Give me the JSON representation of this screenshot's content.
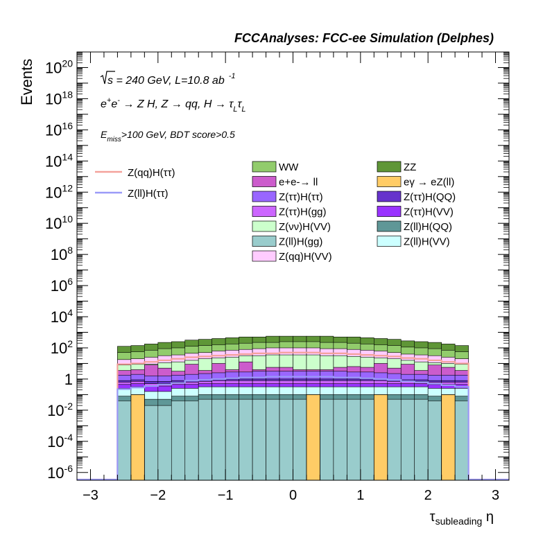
{
  "header": {
    "title": "FCCAnalyses: FCC-ee Simulation (Delphes)"
  },
  "annotations": {
    "sqrt_s": "s",
    "energy_lumi": " = 240 GeV, L=10.8 ab",
    "lumi_exp": "-1",
    "process_main": "e",
    "process_sup1": "+",
    "process_e2": "e",
    "process_sup2": "-",
    "process_rest": " → Z H, Z  → qq, H  → ",
    "tau1": "τ",
    "tau1_sub": "L",
    "tau2": "τ",
    "tau2_sub": "L",
    "cut_e": "E",
    "cut_sub": "miss",
    "cut_rest": ">100 GeV, BDT score>0.5"
  },
  "axes": {
    "ylabel": "Events",
    "xlabel_main": "τ",
    "xlabel_sub": "subleading",
    "xlabel_tail": " η",
    "xticks": [
      "−3",
      "−2",
      "−1",
      "0",
      "1",
      "2",
      "3"
    ],
    "xtick_values": [
      -3,
      -2,
      -1,
      0,
      1,
      2,
      3
    ],
    "yticks": [
      {
        "mant": "10",
        "exp": "-6",
        "value": -6
      },
      {
        "mant": "10",
        "exp": "-4",
        "value": -4
      },
      {
        "mant": "10",
        "exp": "-2",
        "value": -2
      },
      {
        "mant": "1",
        "exp": "",
        "value": 0
      },
      {
        "mant": "10",
        "exp": "2",
        "value": 2
      },
      {
        "mant": "10",
        "exp": "4",
        "value": 4
      },
      {
        "mant": "10",
        "exp": "6",
        "value": 6
      },
      {
        "mant": "10",
        "exp": "8",
        "value": 8
      },
      {
        "mant": "10",
        "exp": "10",
        "value": 10
      },
      {
        "mant": "10",
        "exp": "12",
        "value": 12
      },
      {
        "mant": "10",
        "exp": "14",
        "value": 14
      },
      {
        "mant": "10",
        "exp": "16",
        "value": 16
      },
      {
        "mant": "10",
        "exp": "18",
        "value": 18
      },
      {
        "mant": "10",
        "exp": "20",
        "value": 20
      }
    ]
  },
  "legend": {
    "signals": [
      {
        "label": "Z(qq)H(ττ)",
        "color": "#f4a19b"
      },
      {
        "label": "Z(ll)H(ττ)",
        "color": "#9a9af8"
      }
    ],
    "backgrounds": [
      {
        "label": "WW",
        "color": "#92cc6c"
      },
      {
        "label": "ZZ",
        "color": "#5f9637"
      },
      {
        "label": "e+e-→ ll",
        "color": "#cc5ccc"
      },
      {
        "label": "eγ → eZ(ll)",
        "color": "#ffcc66"
      },
      {
        "label": "Z(ττ)H(ττ)",
        "color": "#9966ff"
      },
      {
        "label": "Z(ττ)H(QQ)",
        "color": "#6633cc"
      },
      {
        "label": "Z(ττ)H(gg)",
        "color": "#cc66ff"
      },
      {
        "label": "Z(ττ)H(VV)",
        "color": "#9933ff"
      },
      {
        "label": "Z(νν)H(VV)",
        "color": "#ccffcc"
      },
      {
        "label": "Z(ll)H(QQ)",
        "color": "#5f9797"
      },
      {
        "label": "Z(ll)H(gg)",
        "color": "#99cccc"
      },
      {
        "label": "Z(ll)H(VV)",
        "color": "#ccffff"
      },
      {
        "label": "Z(qq)H(VV)",
        "color": "#ffccff"
      }
    ]
  },
  "chart_data": {
    "type": "bar",
    "stacked": true,
    "log_y": true,
    "xlim": [
      -3.2,
      3.2
    ],
    "ylim_log10": [
      -6.5,
      21
    ],
    "bin_edges": [
      -2.6,
      -2.4,
      -2.2,
      -2.0,
      -1.8,
      -1.6,
      -1.4,
      -1.2,
      -1.0,
      -0.8,
      -0.6,
      -0.4,
      -0.2,
      0.0,
      0.2,
      0.4,
      0.6,
      0.8,
      1.0,
      1.2,
      1.4,
      1.6,
      1.8,
      2.0,
      2.2,
      2.4,
      2.6
    ],
    "stack_layers": [
      {
        "name": "Z(ll)H(gg)",
        "color": "#99cccc",
        "log10_top": [
          -1.4,
          -1.3,
          -1.7,
          -1.7,
          -1.4,
          -1.4,
          -1.3,
          -1.3,
          -1.3,
          -1.3,
          -1.3,
          -1.3,
          -1.3,
          -1.3,
          -1.3,
          -1.3,
          -1.3,
          -1.3,
          -1.3,
          -1.3,
          -1.3,
          -1.3,
          -1.3,
          -1.4,
          -1.4,
          -1.4
        ]
      },
      {
        "name": "Z(ll)H(QQ)",
        "color": "#5f9797",
        "log10_top": [
          -1.1,
          -1.0,
          -1.3,
          -1.3,
          -1.1,
          -1.1,
          -1.0,
          -1.0,
          -1.0,
          -1.0,
          -1.0,
          -1.0,
          -1.0,
          -1.0,
          -1.0,
          -1.0,
          -1.0,
          -1.0,
          -1.0,
          -1.0,
          -1.0,
          -1.0,
          -1.0,
          -1.1,
          -1.1,
          -1.1
        ]
      },
      {
        "name": "Z(ll)H(VV)",
        "color": "#ccffff",
        "log10_top": [
          -0.6,
          -0.5,
          -0.8,
          -0.8,
          -0.6,
          -0.6,
          -0.5,
          -0.5,
          -0.5,
          -0.5,
          -0.5,
          -0.5,
          -0.5,
          -0.5,
          -0.5,
          -0.5,
          -0.5,
          -0.5,
          -0.5,
          -0.5,
          -0.5,
          -0.5,
          -0.5,
          -0.6,
          -0.6,
          -0.6
        ]
      },
      {
        "name": "Z(ττ)H(VV)",
        "color": "#9933ff",
        "log10_top": [
          -0.35,
          -0.3,
          -0.45,
          -0.45,
          -0.35,
          -0.35,
          -0.3,
          -0.3,
          -0.3,
          -0.3,
          -0.3,
          -0.3,
          -0.3,
          -0.3,
          -0.3,
          -0.3,
          -0.3,
          -0.3,
          -0.3,
          -0.3,
          -0.3,
          -0.3,
          -0.3,
          -0.35,
          -0.35,
          -0.35
        ]
      },
      {
        "name": "Z(ττ)H(gg)",
        "color": "#cc66ff",
        "log10_top": [
          -0.2,
          -0.15,
          -0.3,
          -0.3,
          -0.2,
          -0.2,
          -0.15,
          -0.1,
          -0.1,
          -0.1,
          -0.1,
          -0.1,
          -0.1,
          -0.1,
          -0.1,
          -0.1,
          -0.1,
          -0.1,
          -0.1,
          -0.1,
          -0.15,
          -0.15,
          -0.15,
          -0.2,
          -0.2,
          -0.2
        ]
      },
      {
        "name": "Z(ττ)H(QQ)",
        "color": "#6633cc",
        "log10_top": [
          -0.1,
          -0.05,
          -0.15,
          -0.15,
          -0.1,
          -0.1,
          -0.05,
          0.0,
          0.0,
          0.0,
          0.0,
          0.0,
          0.0,
          0.0,
          0.0,
          0.0,
          0.0,
          0.0,
          0.0,
          0.0,
          -0.05,
          -0.05,
          -0.05,
          -0.1,
          -0.1,
          -0.1
        ]
      },
      {
        "name": "Z(ττ)H(ττ)",
        "color": "#9966ff",
        "log10_top": [
          0.25,
          0.3,
          0.2,
          0.2,
          0.25,
          0.3,
          0.35,
          0.4,
          0.45,
          0.45,
          0.5,
          0.5,
          0.5,
          0.5,
          0.5,
          0.5,
          0.5,
          0.45,
          0.45,
          0.4,
          0.35,
          0.3,
          0.3,
          0.25,
          0.25,
          0.25
        ]
      },
      {
        "name": "e+e-→ ll",
        "color": "#cc5ccc",
        "log10_top": [
          0.55,
          0.6,
          0.9,
          0.7,
          0.5,
          0.95,
          0.55,
          1.0,
          0.6,
          1.1,
          0.6,
          0.75,
          0.75,
          0.6,
          0.6,
          0.6,
          0.75,
          0.8,
          0.75,
          1.0,
          0.7,
          0.95,
          0.55,
          0.9,
          0.75,
          0.55
        ]
      },
      {
        "name": "Z(νν)H(VV)",
        "color": "#ccffcc",
        "log10_top": [
          0.9,
          0.95,
          0.95,
          1.05,
          1.1,
          1.2,
          1.3,
          1.35,
          1.4,
          1.5,
          1.5,
          1.55,
          1.55,
          1.55,
          1.55,
          1.5,
          1.5,
          1.45,
          1.4,
          1.35,
          1.3,
          1.2,
          1.1,
          1.05,
          1.0,
          0.95
        ]
      },
      {
        "name": "Z(qq)H(VV)",
        "color": "#ffccff",
        "log10_top": [
          1.25,
          1.3,
          1.4,
          1.5,
          1.55,
          1.65,
          1.7,
          1.8,
          1.85,
          1.9,
          1.95,
          2.0,
          2.0,
          2.0,
          2.0,
          1.95,
          1.95,
          1.9,
          1.85,
          1.8,
          1.7,
          1.6,
          1.55,
          1.5,
          1.4,
          1.3
        ]
      },
      {
        "name": "WW",
        "color": "#92cc6c",
        "log10_top": [
          1.7,
          1.75,
          1.85,
          1.95,
          2.0,
          2.1,
          2.15,
          2.2,
          2.25,
          2.3,
          2.35,
          2.35,
          2.4,
          2.4,
          2.4,
          2.35,
          2.35,
          2.3,
          2.25,
          2.2,
          2.15,
          2.05,
          2.0,
          1.95,
          1.85,
          1.75
        ]
      },
      {
        "name": "ZZ",
        "color": "#5f9637",
        "log10_top": [
          2.1,
          2.15,
          2.25,
          2.35,
          2.4,
          2.5,
          2.55,
          2.6,
          2.65,
          2.7,
          2.7,
          2.75,
          2.75,
          2.75,
          2.75,
          2.75,
          2.7,
          2.7,
          2.65,
          2.6,
          2.55,
          2.45,
          2.4,
          2.35,
          2.25,
          2.15
        ]
      }
    ],
    "eγ → eZ(ll)": {
      "color": "#ffcc66",
      "bins": [
        [
          -2.4,
          -2.2
        ],
        [
          0.2,
          0.4
        ],
        [
          1.2,
          1.4
        ],
        [
          2.2,
          2.4
        ]
      ],
      "log10_value": -1.0
    },
    "signal_lines": [
      {
        "name": "Z(qq)H(ττ)",
        "color": "#f4a19b",
        "log10_values": [
          0.95,
          1.0,
          1.1,
          1.2,
          1.3,
          1.4,
          1.45,
          1.5,
          1.55,
          1.6,
          1.65,
          1.65,
          1.7,
          1.7,
          1.7,
          1.65,
          1.65,
          1.6,
          1.55,
          1.5,
          1.45,
          1.35,
          1.3,
          1.2,
          1.1,
          1.0
        ]
      },
      {
        "name": "Z(ll)H(ττ)",
        "color": "#9a9af8",
        "log10_values": [
          -0.65,
          -0.55,
          -0.45,
          -0.35,
          -0.25,
          -0.1,
          -0.05,
          0.0,
          0.05,
          0.1,
          0.1,
          0.15,
          0.15,
          0.15,
          0.15,
          0.15,
          0.1,
          0.1,
          0.05,
          0.0,
          -0.05,
          -0.15,
          -0.2,
          -0.3,
          -0.4,
          -0.5
        ]
      }
    ]
  }
}
